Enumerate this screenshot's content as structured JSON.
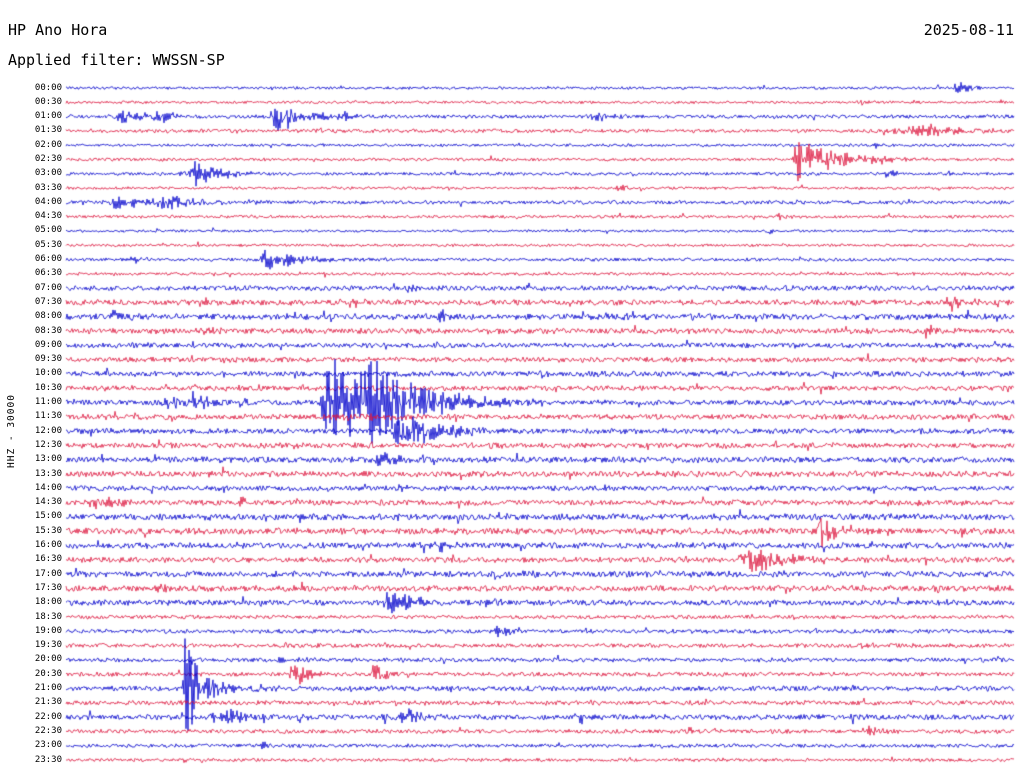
{
  "header": {
    "station": "HP Ano Hora",
    "date": "2025-08-11",
    "filter": "Applied filter: WWSSN-SP"
  },
  "axis": {
    "left_label": "HHZ - 30000"
  },
  "colors": {
    "blue": "#0000CC",
    "red": "#DC143C",
    "text": "#000000",
    "background": "#FFFFFF"
  },
  "chart_data": {
    "type": "line",
    "subtype": "helicorder-seismogram-dayplot",
    "station": "HP Ano Hora",
    "date": "2025-08-11",
    "filter": "WWSSN-SP",
    "channel_scale": "HHZ - 30000",
    "minutes_per_row": 30,
    "rows": [
      {
        "time": "00:00",
        "color": "blue",
        "noise": 1.2
      },
      {
        "time": "00:30",
        "color": "red",
        "noise": 1.2
      },
      {
        "time": "01:00",
        "color": "blue",
        "noise": 1.6
      },
      {
        "time": "01:30",
        "color": "red",
        "noise": 1.6
      },
      {
        "time": "02:00",
        "color": "blue",
        "noise": 1.2
      },
      {
        "time": "02:30",
        "color": "red",
        "noise": 1.3
      },
      {
        "time": "03:00",
        "color": "blue",
        "noise": 1.4
      },
      {
        "time": "03:30",
        "color": "red",
        "noise": 1.2
      },
      {
        "time": "04:00",
        "color": "blue",
        "noise": 1.6
      },
      {
        "time": "04:30",
        "color": "red",
        "noise": 1.3
      },
      {
        "time": "05:00",
        "color": "blue",
        "noise": 1.1
      },
      {
        "time": "05:30",
        "color": "red",
        "noise": 1.2
      },
      {
        "time": "06:00",
        "color": "blue",
        "noise": 1.4
      },
      {
        "time": "06:30",
        "color": "red",
        "noise": 1.3
      },
      {
        "time": "07:00",
        "color": "blue",
        "noise": 2.2
      },
      {
        "time": "07:30",
        "color": "red",
        "noise": 2.4
      },
      {
        "time": "08:00",
        "color": "blue",
        "noise": 2.6
      },
      {
        "time": "08:30",
        "color": "red",
        "noise": 2.4
      },
      {
        "time": "09:00",
        "color": "blue",
        "noise": 2.2
      },
      {
        "time": "09:30",
        "color": "red",
        "noise": 2.2
      },
      {
        "time": "10:00",
        "color": "blue",
        "noise": 2.4
      },
      {
        "time": "10:30",
        "color": "red",
        "noise": 2.2
      },
      {
        "time": "11:00",
        "color": "blue",
        "noise": 2.4
      },
      {
        "time": "11:30",
        "color": "red",
        "noise": 2.4
      },
      {
        "time": "12:00",
        "color": "blue",
        "noise": 2.4
      },
      {
        "time": "12:30",
        "color": "red",
        "noise": 2.4
      },
      {
        "time": "13:00",
        "color": "blue",
        "noise": 2.6
      },
      {
        "time": "13:30",
        "color": "red",
        "noise": 2.6
      },
      {
        "time": "14:00",
        "color": "blue",
        "noise": 2.2
      },
      {
        "time": "14:30",
        "color": "red",
        "noise": 2.4
      },
      {
        "time": "15:00",
        "color": "blue",
        "noise": 2.8
      },
      {
        "time": "15:30",
        "color": "red",
        "noise": 2.8
      },
      {
        "time": "16:00",
        "color": "blue",
        "noise": 2.6
      },
      {
        "time": "16:30",
        "color": "red",
        "noise": 2.4
      },
      {
        "time": "17:00",
        "color": "blue",
        "noise": 2.6
      },
      {
        "time": "17:30",
        "color": "red",
        "noise": 2.6
      },
      {
        "time": "18:00",
        "color": "blue",
        "noise": 2.4
      },
      {
        "time": "18:30",
        "color": "red",
        "noise": 1.6
      },
      {
        "time": "19:00",
        "color": "blue",
        "noise": 1.8
      },
      {
        "time": "19:30",
        "color": "red",
        "noise": 1.8
      },
      {
        "time": "20:00",
        "color": "blue",
        "noise": 1.8
      },
      {
        "time": "20:30",
        "color": "red",
        "noise": 1.8
      },
      {
        "time": "21:00",
        "color": "blue",
        "noise": 2.2
      },
      {
        "time": "21:30",
        "color": "red",
        "noise": 2.0
      },
      {
        "time": "22:00",
        "color": "blue",
        "noise": 2.4
      },
      {
        "time": "22:30",
        "color": "red",
        "noise": 1.8
      },
      {
        "time": "23:00",
        "color": "blue",
        "noise": 1.6
      },
      {
        "time": "23:30",
        "color": "red",
        "noise": 1.4
      }
    ],
    "events": [
      {
        "time": "00:00",
        "row": 0,
        "x": 0.941,
        "amp": 9,
        "w": 3,
        "coda": 12
      },
      {
        "time": "00:30",
        "row": 1,
        "x": 0.838,
        "amp": 4,
        "w": 2,
        "coda": 6
      },
      {
        "time": "01:00",
        "row": 2,
        "x": 0.062,
        "amp": 5,
        "w": 8,
        "coda": 20
      },
      {
        "time": "01:00",
        "row": 2,
        "x": 0.099,
        "amp": 6,
        "w": 6,
        "coda": 15
      },
      {
        "time": "01:00",
        "row": 2,
        "x": 0.22,
        "amp": 17,
        "w": 2,
        "coda": 28
      },
      {
        "time": "01:00",
        "row": 2,
        "x": 0.294,
        "amp": 4,
        "w": 3,
        "coda": 8
      },
      {
        "time": "01:00",
        "row": 2,
        "x": 0.563,
        "amp": 5,
        "w": 5,
        "coda": 15
      },
      {
        "time": "01:30",
        "row": 3,
        "x": 0.266,
        "amp": 4,
        "w": 2,
        "coda": 6
      },
      {
        "time": "01:30",
        "row": 3,
        "x": 0.92,
        "amp": 6,
        "w": 25,
        "coda": 30
      },
      {
        "time": "02:00",
        "row": 4,
        "x": 0.853,
        "amp": 4,
        "w": 2,
        "coda": 8
      },
      {
        "time": "02:30",
        "row": 5,
        "x": 0.774,
        "amp": 21,
        "w": 4,
        "coda": 40
      },
      {
        "time": "03:00",
        "row": 6,
        "x": 0.137,
        "amp": 12,
        "w": 7,
        "coda": 25
      },
      {
        "time": "03:00",
        "row": 6,
        "x": 0.867,
        "amp": 5,
        "w": 2,
        "coda": 8
      },
      {
        "time": "03:00",
        "row": 6,
        "x": 0.927,
        "amp": 4,
        "w": 2,
        "coda": 6
      },
      {
        "time": "03:30",
        "row": 7,
        "x": 0.584,
        "amp": 4,
        "w": 3,
        "coda": 8
      },
      {
        "time": "04:00",
        "row": 8,
        "x": 0.059,
        "amp": 7,
        "w": 9,
        "coda": 20
      },
      {
        "time": "04:00",
        "row": 8,
        "x": 0.108,
        "amp": 8,
        "w": 8,
        "coda": 25
      },
      {
        "time": "04:00",
        "row": 8,
        "x": 0.194,
        "amp": 3,
        "w": 3,
        "coda": 8
      },
      {
        "time": "04:30",
        "row": 9,
        "x": 0.753,
        "amp": 3,
        "w": 2,
        "coda": 6
      },
      {
        "time": "05:00",
        "row": 10,
        "x": 0.743,
        "amp": 3,
        "w": 2,
        "coda": 5
      },
      {
        "time": "06:00",
        "row": 12,
        "x": 0.073,
        "amp": 4,
        "w": 3,
        "coda": 8
      },
      {
        "time": "06:00",
        "row": 12,
        "x": 0.215,
        "amp": 10,
        "w": 9,
        "coda": 30
      },
      {
        "time": "07:00",
        "row": 14,
        "x": 0.363,
        "amp": 4,
        "w": 3,
        "coda": 8
      },
      {
        "time": "07:00",
        "row": 14,
        "x": 0.484,
        "amp": 4,
        "w": 3,
        "coda": 8
      },
      {
        "time": "07:30",
        "row": 15,
        "x": 0.3,
        "amp": 5,
        "w": 3,
        "coda": 10
      },
      {
        "time": "07:30",
        "row": 15,
        "x": 0.935,
        "amp": 8,
        "w": 6,
        "coda": 15
      },
      {
        "time": "08:00",
        "row": 16,
        "x": 0.052,
        "amp": 6,
        "w": 4,
        "coda": 10
      },
      {
        "time": "08:00",
        "row": 16,
        "x": 0.395,
        "amp": 6,
        "w": 4,
        "coda": 12
      },
      {
        "time": "08:00",
        "row": 16,
        "x": 0.595,
        "amp": 5,
        "w": 3,
        "coda": 10
      },
      {
        "time": "08:30",
        "row": 17,
        "x": 0.147,
        "amp": 5,
        "w": 3,
        "coda": 10
      },
      {
        "time": "08:30",
        "row": 17,
        "x": 0.911,
        "amp": 8,
        "w": 5,
        "coda": 14
      },
      {
        "time": "09:30",
        "row": 19,
        "x": 0.168,
        "amp": 4,
        "w": 3,
        "coda": 8
      },
      {
        "time": "10:00",
        "row": 20,
        "x": 0.5,
        "amp": 3,
        "w": 3,
        "coda": 8
      },
      {
        "time": "10:30",
        "row": 21,
        "x": 0.168,
        "amp": 4,
        "w": 3,
        "coda": 8
      },
      {
        "time": "11:00",
        "row": 22,
        "x": 0.11,
        "amp": 7,
        "w": 6,
        "coda": 15
      },
      {
        "time": "11:00",
        "row": 22,
        "x": 0.136,
        "amp": 8,
        "w": 5,
        "coda": 15
      },
      {
        "time": "11:00",
        "row": 22,
        "x": 0.184,
        "amp": 5,
        "w": 3,
        "coda": 8
      },
      {
        "time": "11:00",
        "row": 22,
        "x": 0.281,
        "amp": 46,
        "w": 7,
        "coda": 55
      },
      {
        "time": "11:00",
        "row": 22,
        "x": 0.321,
        "amp": 18,
        "w": 5,
        "coda": 45
      },
      {
        "time": "11:30",
        "row": 23,
        "x": 0.3,
        "amp": 3,
        "w": 20,
        "coda": 60
      },
      {
        "time": "12:00",
        "row": 24,
        "x": 0.352,
        "amp": 20,
        "w": 4,
        "coda": 35
      },
      {
        "time": "13:00",
        "row": 26,
        "x": 0.337,
        "amp": 7,
        "w": 6,
        "coda": 15
      },
      {
        "time": "14:00",
        "row": 28,
        "x": 0.352,
        "amp": 5,
        "w": 3,
        "coda": 8
      },
      {
        "time": "14:30",
        "row": 29,
        "x": 0.036,
        "amp": 8,
        "w": 7,
        "coda": 18
      },
      {
        "time": "14:30",
        "row": 29,
        "x": 0.184,
        "amp": 5,
        "w": 3,
        "coda": 8
      },
      {
        "time": "15:00",
        "row": 30,
        "x": 0.247,
        "amp": 5,
        "w": 4,
        "coda": 8
      },
      {
        "time": "15:00",
        "row": 30,
        "x": 0.458,
        "amp": 4,
        "w": 3,
        "coda": 8
      },
      {
        "time": "15:30",
        "row": 31,
        "x": 0.793,
        "amp": 17,
        "w": 3,
        "coda": 25
      },
      {
        "time": "16:00",
        "row": 32,
        "x": 0.395,
        "amp": 5,
        "w": 4,
        "coda": 10
      },
      {
        "time": "16:30",
        "row": 33,
        "x": 0.722,
        "amp": 15,
        "w": 8,
        "coda": 35
      },
      {
        "time": "17:00",
        "row": 34,
        "x": 0.489,
        "amp": 5,
        "w": 3,
        "coda": 10
      },
      {
        "time": "17:30",
        "row": 35,
        "x": 0.099,
        "amp": 5,
        "w": 3,
        "coda": 8
      },
      {
        "time": "18:00",
        "row": 36,
        "x": 0.342,
        "amp": 13,
        "w": 4,
        "coda": 25
      },
      {
        "time": "18:00",
        "row": 36,
        "x": 0.447,
        "amp": 5,
        "w": 3,
        "coda": 10
      },
      {
        "time": "19:00",
        "row": 38,
        "x": 0.458,
        "amp": 7,
        "w": 5,
        "coda": 14
      },
      {
        "time": "19:30",
        "row": 39,
        "x": 0.843,
        "amp": 4,
        "w": 3,
        "coda": 8
      },
      {
        "time": "20:00",
        "row": 40,
        "x": 0.226,
        "amp": 4,
        "w": 3,
        "coda": 8
      },
      {
        "time": "20:30",
        "row": 41,
        "x": 0.242,
        "amp": 13,
        "w": 4,
        "coda": 15
      },
      {
        "time": "20:30",
        "row": 41,
        "x": 0.326,
        "amp": 11,
        "w": 3,
        "coda": 12
      },
      {
        "time": "21:00",
        "row": 42,
        "x": 0.126,
        "amp": 52,
        "w": 1.5,
        "coda": 8
      },
      {
        "time": "21:00",
        "row": 42,
        "x": 0.141,
        "amp": 13,
        "w": 10,
        "coda": 30
      },
      {
        "time": "22:00",
        "row": 44,
        "x": 0.168,
        "amp": 9,
        "w": 8,
        "coda": 20
      },
      {
        "time": "22:00",
        "row": 44,
        "x": 0.247,
        "amp": 4,
        "w": 3,
        "coda": 8
      },
      {
        "time": "22:00",
        "row": 44,
        "x": 0.358,
        "amp": 8,
        "w": 6,
        "coda": 15
      },
      {
        "time": "22:00",
        "row": 44,
        "x": 0.542,
        "amp": 6,
        "w": 4,
        "coda": 10
      },
      {
        "time": "22:30",
        "row": 45,
        "x": 0.658,
        "amp": 5,
        "w": 3,
        "coda": 8
      },
      {
        "time": "22:30",
        "row": 45,
        "x": 0.846,
        "amp": 6,
        "w": 4,
        "coda": 10
      },
      {
        "time": "23:00",
        "row": 46,
        "x": 0.21,
        "amp": 3,
        "w": 3,
        "coda": 6
      },
      {
        "time": "23:30",
        "row": 47,
        "x": 0.126,
        "amp": 3,
        "w": 2,
        "coda": 6
      }
    ]
  }
}
